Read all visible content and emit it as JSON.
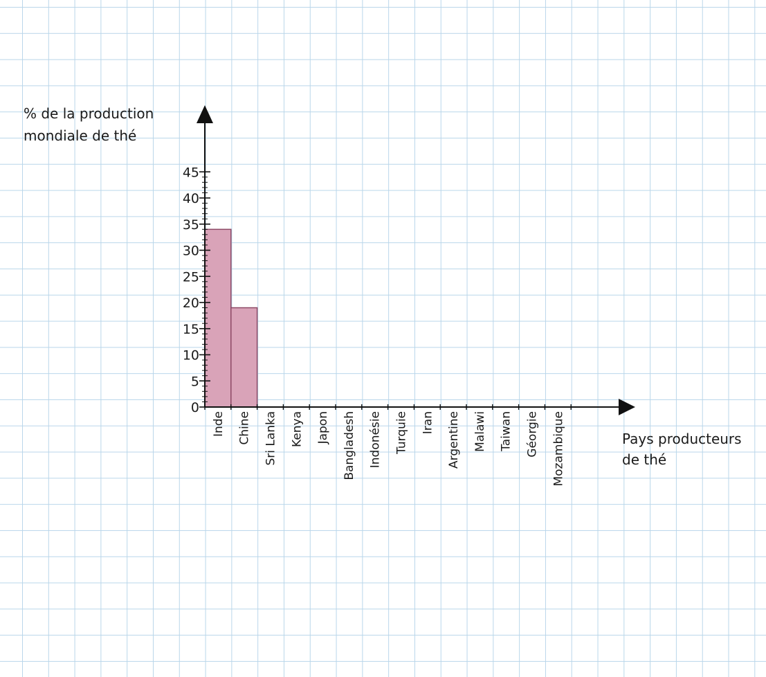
{
  "chart_data": {
    "type": "bar",
    "ylabel_lines": [
      "% de la production",
      "mondiale de thé"
    ],
    "xlabel_lines": [
      "Pays producteurs",
      "de thé"
    ],
    "categories": [
      "Inde",
      "Chine",
      "Sri Lanka",
      "Kenya",
      "Japon",
      "Bangladesh",
      "Indonésie",
      "Turquie",
      "Iran",
      "Argentine",
      "Malawi",
      "Taiwan",
      "Géorgie",
      "Mozambique"
    ],
    "values": [
      34,
      19,
      null,
      null,
      null,
      null,
      null,
      null,
      null,
      null,
      null,
      null,
      null,
      null
    ],
    "yticks": [
      0,
      5,
      10,
      15,
      20,
      25,
      30,
      35,
      40,
      45
    ],
    "ylim": [
      0,
      45
    ],
    "grid": true,
    "colors": {
      "bar": "#d9a3b8",
      "bar_edge": "#8e4a66",
      "grid": "#b9d6ea",
      "axis": "#111111"
    }
  }
}
